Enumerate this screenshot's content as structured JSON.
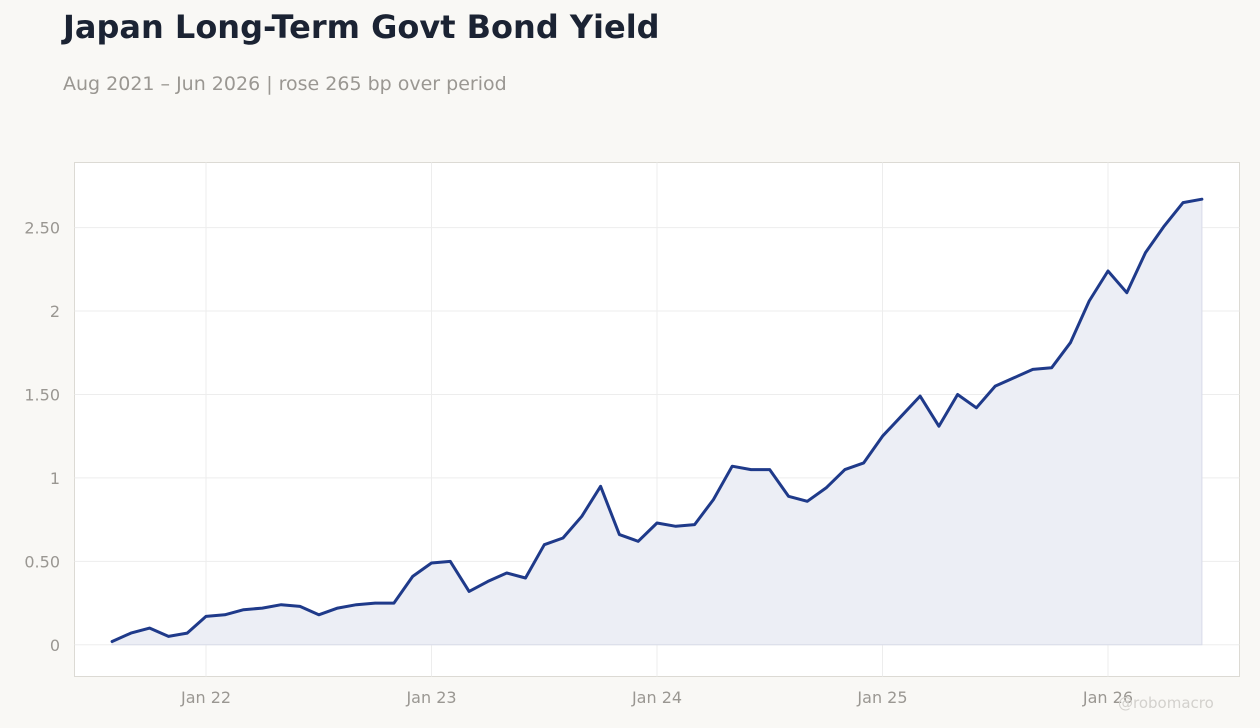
{
  "title": "Japan Long-Term Govt Bond Yield",
  "subtitle": "Aug 2021 – Jun 2026 | rose 265 bp over period",
  "watermark": "@robomacro",
  "colors": {
    "line": "#1f3a8a",
    "area": "#eceef5",
    "background": "#f9f8f5",
    "plot": "#ffffff",
    "grid": "#ededed"
  },
  "chart_data": {
    "type": "area",
    "title": "Japan Long-Term Govt Bond Yield",
    "subtitle": "Aug 2021 – Jun 2026 | rose 265 bp over period",
    "xlabel": "",
    "ylabel": "",
    "ylim": [
      -0.19,
      2.89
    ],
    "xlim": [
      "2021-06",
      "2026-08"
    ],
    "grid": true,
    "yticks": [
      0,
      0.5,
      1,
      1.5,
      2,
      2.5
    ],
    "ytick_labels": [
      "0",
      "0.50",
      "1",
      "1.50",
      "2",
      "2.50"
    ],
    "xticks": [
      "2022-01",
      "2023-01",
      "2024-01",
      "2025-01",
      "2026-01"
    ],
    "xtick_labels": [
      "Jan 22",
      "Jan 23",
      "Jan 24",
      "Jan 25",
      "Jan 26"
    ],
    "series": [
      {
        "x": [
          "2021-08",
          "2021-09",
          "2021-10",
          "2021-11",
          "2021-12",
          "2022-01",
          "2022-02",
          "2022-03",
          "2022-04",
          "2022-05",
          "2022-06",
          "2022-07",
          "2022-08",
          "2022-09",
          "2022-10",
          "2022-11",
          "2022-12",
          "2023-01",
          "2023-02",
          "2023-03",
          "2023-04",
          "2023-05",
          "2023-06",
          "2023-07",
          "2023-08",
          "2023-09",
          "2023-10",
          "2023-11",
          "2023-12",
          "2024-01",
          "2024-02",
          "2024-03",
          "2024-04",
          "2024-05",
          "2024-06",
          "2024-07",
          "2024-08",
          "2024-09",
          "2024-10",
          "2024-11",
          "2024-12",
          "2025-01",
          "2025-02",
          "2025-03",
          "2025-04",
          "2025-05",
          "2025-06",
          "2025-07",
          "2025-08",
          "2025-09",
          "2025-10",
          "2025-11",
          "2025-12",
          "2026-01",
          "2026-02",
          "2026-03",
          "2026-04",
          "2026-05",
          "2026-06"
        ],
        "values": [
          0.02,
          0.07,
          0.1,
          0.05,
          0.07,
          0.17,
          0.18,
          0.21,
          0.22,
          0.24,
          0.23,
          0.18,
          0.22,
          0.24,
          0.25,
          0.25,
          0.41,
          0.49,
          0.5,
          0.32,
          0.38,
          0.43,
          0.4,
          0.6,
          0.64,
          0.77,
          0.95,
          0.66,
          0.62,
          0.73,
          0.71,
          0.72,
          0.87,
          1.07,
          1.05,
          1.05,
          0.89,
          0.86,
          0.94,
          1.05,
          1.09,
          1.25,
          1.37,
          1.49,
          1.31,
          1.5,
          1.42,
          1.55,
          1.6,
          1.65,
          1.66,
          1.81,
          2.06,
          2.24,
          2.11,
          2.35,
          2.51,
          2.65,
          2.67
        ]
      }
    ]
  }
}
